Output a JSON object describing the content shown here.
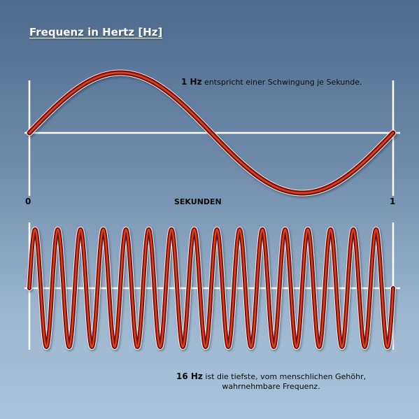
{
  "title": "Frequenz in Hertz [Hz]",
  "top_wave": {
    "frequency_hz": 1,
    "note_bold": "1 Hz",
    "note_text": " entspricht einer Schwingung je Sekunde."
  },
  "axis": {
    "start_label": "0",
    "end_label": "1",
    "unit_label": "SEKUNDEN"
  },
  "bottom_wave": {
    "frequency_hz": 16,
    "note_bold": "16 Hz",
    "note_text_line1": " ist die tiefste, vom menschlichen Gehöhr,",
    "note_text_line2": "wahrnehmbare Frequenz."
  },
  "colors": {
    "wave_dark": "#7a0f0a",
    "wave_light": "#d8441f",
    "axis_line": "#ffffff"
  }
}
